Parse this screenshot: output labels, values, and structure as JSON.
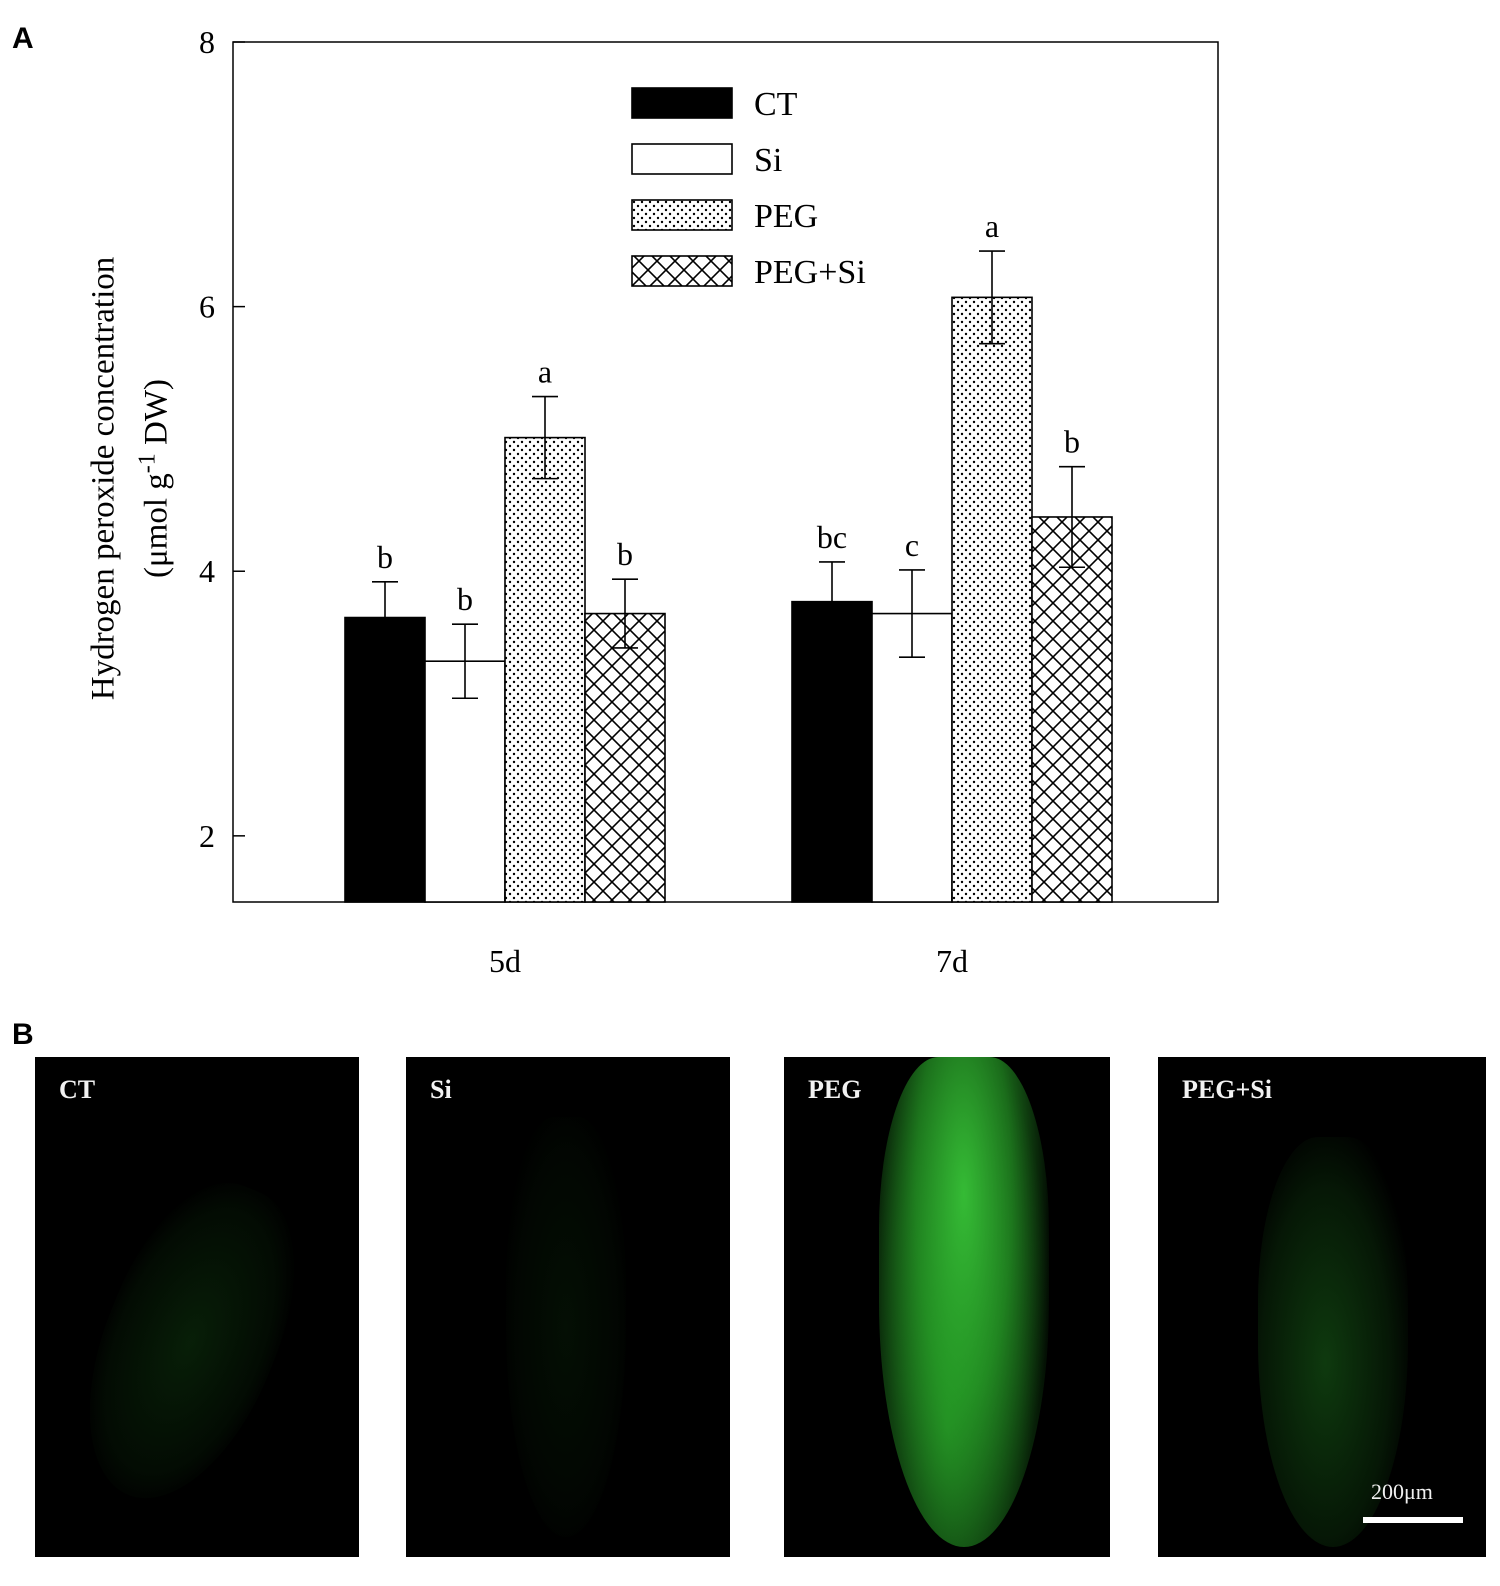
{
  "panels": {
    "a": "A",
    "b": "B"
  },
  "chart_data": {
    "type": "bar",
    "categories": [
      "5d",
      "7d"
    ],
    "series": [
      {
        "name": "CT",
        "pattern": "solid",
        "values": [
          3.65,
          3.77
        ],
        "errors": [
          0.27,
          0.3
        ],
        "letters": [
          "b",
          "bc"
        ]
      },
      {
        "name": "Si",
        "pattern": "open",
        "values": [
          3.32,
          3.68
        ],
        "errors": [
          0.28,
          0.33
        ],
        "letters": [
          "b",
          "c"
        ]
      },
      {
        "name": "PEG",
        "pattern": "dots",
        "values": [
          5.01,
          6.07
        ],
        "errors": [
          0.31,
          0.35
        ],
        "letters": [
          "a",
          "a"
        ]
      },
      {
        "name": "PEG+Si",
        "pattern": "crosshatch",
        "values": [
          3.68,
          4.41
        ],
        "errors": [
          0.26,
          0.38
        ],
        "letters": [
          "b",
          "b"
        ]
      }
    ],
    "ylabel_line1": "Hydrogen peroxide concentration",
    "ylabel_line2_pre": "(μmol g",
    "ylabel_sup": "-1",
    "ylabel_line2_post": " DW)",
    "xlabel": "",
    "ylim": [
      1.5,
      8
    ],
    "yticks": [
      "2",
      "4",
      "6",
      "8"
    ],
    "legend_position": "top-center",
    "grid": false
  },
  "micrographs": [
    {
      "label": "CT",
      "intensity": 0.14
    },
    {
      "label": "Si",
      "intensity": 0.07
    },
    {
      "label": "PEG",
      "intensity": 0.75
    },
    {
      "label": "PEG+Si",
      "intensity": 0.22
    }
  ],
  "scale_bar": "200μm",
  "colors": {
    "fluorescence": "#2fbf2f",
    "background": "#000000",
    "bars": "#000000"
  }
}
